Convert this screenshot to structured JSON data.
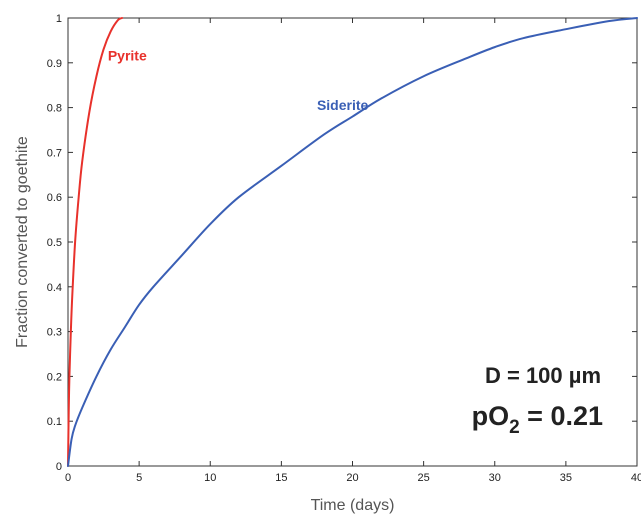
{
  "chart_data": {
    "type": "line",
    "title": "",
    "xlabel": "Time (days)",
    "ylabel": "Fraction converted to goethite",
    "xlim": [
      0,
      40
    ],
    "ylim": [
      0,
      1
    ],
    "xticks": [
      "0",
      "5",
      "10",
      "15",
      "20",
      "25",
      "30",
      "35",
      "40"
    ],
    "yticks": [
      "0",
      "0.1",
      "0.2",
      "0.3",
      "0.4",
      "0.5",
      "0.6",
      "0.7",
      "0.8",
      "0.9",
      "1"
    ],
    "grid": false,
    "series": [
      {
        "name": "Pyrite",
        "color": "#e8312b",
        "x": [
          0,
          0.05,
          0.1,
          0.2,
          0.3,
          0.5,
          0.75,
          1.0,
          1.5,
          2.0,
          2.5,
          3.0,
          3.5,
          3.8
        ],
        "y": [
          0,
          0.12,
          0.2,
          0.3,
          0.38,
          0.5,
          0.6,
          0.68,
          0.79,
          0.87,
          0.93,
          0.97,
          0.995,
          1.0
        ]
      },
      {
        "name": "Siderite",
        "color": "#3a5fb5",
        "x": [
          0,
          0.25,
          0.5,
          1,
          2,
          3,
          4,
          5,
          6,
          8,
          10,
          12,
          15,
          18,
          20,
          22,
          25,
          28,
          30,
          32,
          35,
          38,
          40
        ],
        "y": [
          0,
          0.06,
          0.09,
          0.13,
          0.2,
          0.26,
          0.31,
          0.36,
          0.4,
          0.47,
          0.54,
          0.6,
          0.67,
          0.74,
          0.78,
          0.82,
          0.87,
          0.91,
          0.935,
          0.955,
          0.975,
          0.993,
          1.0
        ]
      }
    ],
    "annotations": {
      "diameter": "D = 100 µm",
      "po2_prefix": "pO",
      "po2_sub": "2",
      "po2_suffix": " = 0.21"
    }
  }
}
